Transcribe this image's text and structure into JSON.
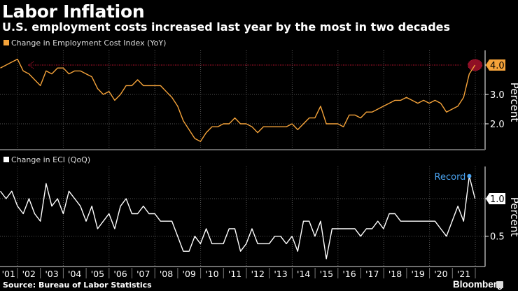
{
  "title": "Labor Inflation",
  "subtitle": "U.S. employment costs increased last year by the most in two decades",
  "source": "Source: Bureau of Labor Statistics",
  "brand": "Bloomberg",
  "colors": {
    "yoy": "#f5a33a",
    "qoq": "#ffffff",
    "record": "#4aa3f0",
    "highlight": "#b3122e"
  },
  "x_tick_labels": [
    "'01",
    "'02",
    "'03",
    "'04",
    "'05",
    "'06",
    "'07",
    "'08",
    "'09",
    "'10",
    "'11",
    "'12",
    "'13",
    "'14",
    "'15",
    "'16",
    "'17",
    "'18",
    "'19",
    "'20",
    "'21"
  ],
  "chart_data": [
    {
      "type": "line",
      "legend": "Change in Employment Cost Index (YoY)",
      "ylabel": "Percent",
      "x_frequency": "quarterly",
      "x_range": [
        "2001Q1",
        "2021Q4"
      ],
      "ylim": [
        1.1,
        4.5
      ],
      "y_ticks": [
        2.0,
        3.0,
        4.0
      ],
      "y_tick_labels": [
        "2.0",
        "3.0"
      ],
      "last_value_label": "4.0",
      "reference_line": {
        "value": 4.0,
        "style": "dotted arrow to 2001 peak"
      },
      "grid": true,
      "values": [
        3.9,
        4.0,
        4.1,
        4.2,
        3.8,
        3.7,
        3.5,
        3.3,
        3.8,
        3.7,
        3.9,
        3.9,
        3.7,
        3.8,
        3.8,
        3.7,
        3.6,
        3.2,
        3.0,
        3.1,
        2.8,
        3.0,
        3.3,
        3.3,
        3.5,
        3.3,
        3.3,
        3.3,
        3.3,
        3.1,
        2.9,
        2.6,
        2.1,
        1.8,
        1.5,
        1.4,
        1.7,
        1.9,
        1.9,
        2.0,
        2.0,
        2.2,
        2.0,
        2.0,
        1.9,
        1.7,
        1.9,
        1.9,
        1.9,
        1.9,
        1.9,
        2.0,
        1.8,
        2.0,
        2.2,
        2.2,
        2.6,
        2.0,
        2.0,
        2.0,
        1.9,
        2.3,
        2.3,
        2.2,
        2.4,
        2.4,
        2.5,
        2.6,
        2.7,
        2.8,
        2.8,
        2.9,
        2.8,
        2.7,
        2.8,
        2.7,
        2.8,
        2.7,
        2.4,
        2.5,
        2.6,
        2.9,
        3.7,
        4.0
      ]
    },
    {
      "type": "line",
      "legend": "Change in ECI (QoQ)",
      "ylabel": "Percent",
      "x_frequency": "quarterly",
      "x_range": [
        "2001Q1",
        "2021Q4"
      ],
      "ylim": [
        0.12,
        1.43
      ],
      "y_ticks": [
        0.5,
        1.0
      ],
      "y_tick_labels": [
        "0.5"
      ],
      "last_value_label": "1.0",
      "annotation": {
        "text": "Record",
        "quarter": "2021Q3",
        "value": 1.3
      },
      "grid": true,
      "values": [
        1.1,
        1.0,
        1.1,
        0.9,
        0.8,
        1.0,
        0.8,
        0.7,
        1.2,
        0.9,
        1.0,
        0.8,
        1.1,
        1.0,
        0.9,
        0.7,
        0.9,
        0.6,
        0.7,
        0.8,
        0.6,
        0.9,
        1.0,
        0.8,
        0.8,
        0.9,
        0.8,
        0.8,
        0.7,
        0.7,
        0.7,
        0.5,
        0.3,
        0.3,
        0.5,
        0.4,
        0.6,
        0.4,
        0.4,
        0.4,
        0.6,
        0.6,
        0.3,
        0.4,
        0.6,
        0.4,
        0.4,
        0.4,
        0.5,
        0.5,
        0.4,
        0.5,
        0.3,
        0.7,
        0.7,
        0.5,
        0.7,
        0.2,
        0.6,
        0.6,
        0.6,
        0.6,
        0.6,
        0.5,
        0.6,
        0.6,
        0.7,
        0.6,
        0.8,
        0.8,
        0.7,
        0.7,
        0.7,
        0.7,
        0.7,
        0.7,
        0.7,
        0.6,
        0.5,
        0.7,
        0.9,
        0.7,
        1.3,
        1.0
      ]
    }
  ]
}
